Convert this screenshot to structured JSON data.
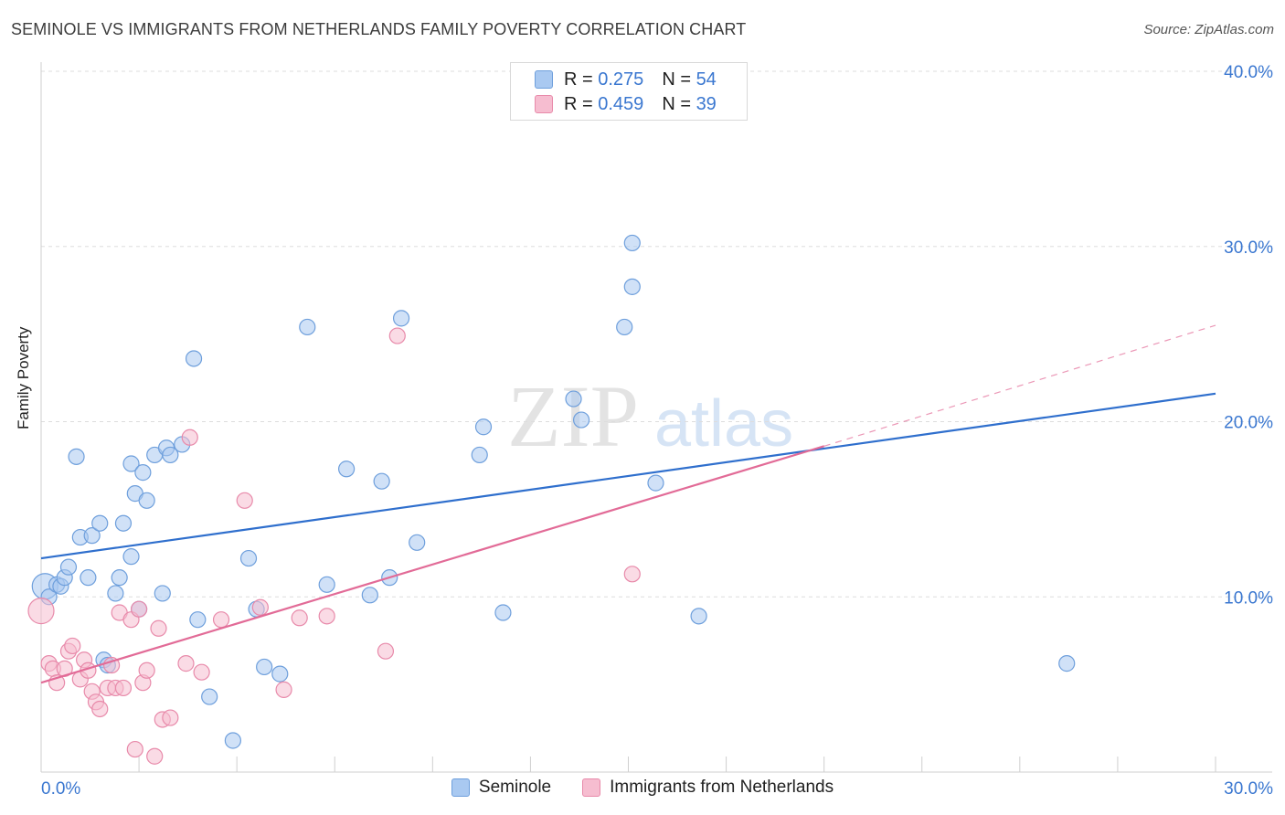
{
  "title": "SEMINOLE VS IMMIGRANTS FROM NETHERLANDS FAMILY POVERTY CORRELATION CHART",
  "source": "Source: ZipAtlas.com",
  "watermark": {
    "zip": "ZIP",
    "atlas": "atlas"
  },
  "legend": {
    "r_label": "R =",
    "n_label": "N =",
    "rows": [
      {
        "r": "0.275",
        "n": "54"
      },
      {
        "r": "0.459",
        "n": "39"
      }
    ]
  },
  "colors": {
    "blue_fill": "#a9c9f1",
    "blue_stroke": "#6e9fdc",
    "blue_line": "#2f6fcd",
    "pink_fill": "#f6bdd0",
    "pink_stroke": "#e88aaa",
    "pink_line": "#e26b97",
    "axis_text": "#3a77d0",
    "grid": "#dddddd"
  },
  "chart_data": {
    "type": "scatter",
    "title": "SEMINOLE VS IMMIGRANTS FROM NETHERLANDS FAMILY POVERTY CORRELATION CHART",
    "xlabel": "",
    "ylabel": "Family Poverty",
    "xlim": [
      0,
      30
    ],
    "ylim": [
      0,
      40
    ],
    "x_tick_labels": [
      "0.0%",
      "30.0%"
    ],
    "y_tick_values": [
      10,
      20,
      30,
      40
    ],
    "y_tick_labels": [
      "10.0%",
      "20.0%",
      "30.0%",
      "40.0%"
    ],
    "grid": "horizontal-dashed",
    "series": [
      {
        "name": "Seminole",
        "r": 0.275,
        "n": 54,
        "points": [
          [
            0.1,
            10.6
          ],
          [
            0.2,
            10.0
          ],
          [
            0.4,
            10.7
          ],
          [
            0.5,
            10.6
          ],
          [
            0.6,
            11.1
          ],
          [
            0.7,
            11.7
          ],
          [
            0.9,
            18.0
          ],
          [
            1.0,
            13.4
          ],
          [
            1.2,
            11.1
          ],
          [
            1.3,
            13.5
          ],
          [
            1.5,
            14.2
          ],
          [
            1.6,
            6.4
          ],
          [
            1.7,
            6.1
          ],
          [
            1.9,
            10.2
          ],
          [
            2.0,
            11.1
          ],
          [
            2.1,
            14.2
          ],
          [
            2.3,
            17.6
          ],
          [
            2.3,
            12.3
          ],
          [
            2.4,
            15.9
          ],
          [
            2.5,
            9.3
          ],
          [
            2.6,
            17.1
          ],
          [
            2.7,
            15.5
          ],
          [
            2.9,
            18.1
          ],
          [
            3.1,
            10.2
          ],
          [
            3.2,
            18.5
          ],
          [
            3.3,
            18.1
          ],
          [
            3.6,
            18.7
          ],
          [
            3.9,
            23.6
          ],
          [
            4.0,
            8.7
          ],
          [
            4.3,
            4.3
          ],
          [
            4.9,
            1.8
          ],
          [
            5.3,
            12.2
          ],
          [
            5.5,
            9.3
          ],
          [
            5.7,
            6.0
          ],
          [
            6.1,
            5.6
          ],
          [
            6.8,
            25.4
          ],
          [
            7.3,
            10.7
          ],
          [
            7.8,
            17.3
          ],
          [
            8.4,
            10.1
          ],
          [
            8.7,
            16.6
          ],
          [
            8.9,
            11.1
          ],
          [
            9.2,
            25.9
          ],
          [
            9.6,
            13.1
          ],
          [
            11.2,
            18.1
          ],
          [
            11.3,
            19.7
          ],
          [
            11.8,
            9.1
          ],
          [
            13.6,
            21.3
          ],
          [
            13.8,
            20.1
          ],
          [
            14.9,
            25.4
          ],
          [
            15.1,
            27.7
          ],
          [
            15.1,
            30.2
          ],
          [
            15.7,
            16.5
          ],
          [
            16.8,
            8.9
          ],
          [
            26.2,
            6.2
          ]
        ],
        "trend": {
          "x0": 0,
          "y0": 12.2,
          "x1": 30,
          "y1": 21.6
        }
      },
      {
        "name": "Immigrants from Netherlands",
        "r": 0.459,
        "n": 39,
        "points": [
          [
            0.0,
            9.2
          ],
          [
            0.2,
            6.2
          ],
          [
            0.3,
            5.9
          ],
          [
            0.4,
            5.1
          ],
          [
            0.6,
            5.9
          ],
          [
            0.7,
            6.9
          ],
          [
            0.8,
            7.2
          ],
          [
            1.0,
            5.3
          ],
          [
            1.1,
            6.4
          ],
          [
            1.2,
            5.8
          ],
          [
            1.3,
            4.6
          ],
          [
            1.4,
            4.0
          ],
          [
            1.5,
            3.6
          ],
          [
            1.7,
            4.8
          ],
          [
            1.8,
            6.1
          ],
          [
            1.9,
            4.8
          ],
          [
            2.0,
            9.1
          ],
          [
            2.1,
            4.8
          ],
          [
            2.3,
            8.7
          ],
          [
            2.4,
            1.3
          ],
          [
            2.5,
            9.3
          ],
          [
            2.6,
            5.1
          ],
          [
            2.7,
            5.8
          ],
          [
            2.9,
            0.9
          ],
          [
            3.0,
            8.2
          ],
          [
            3.1,
            3.0
          ],
          [
            3.3,
            3.1
          ],
          [
            3.7,
            6.2
          ],
          [
            3.8,
            19.1
          ],
          [
            4.1,
            5.7
          ],
          [
            4.6,
            8.7
          ],
          [
            5.2,
            15.5
          ],
          [
            5.6,
            9.4
          ],
          [
            6.2,
            4.7
          ],
          [
            6.6,
            8.8
          ],
          [
            7.3,
            8.9
          ],
          [
            8.8,
            6.9
          ],
          [
            9.1,
            24.9
          ],
          [
            15.1,
            11.3
          ]
        ],
        "trend": {
          "x0": 0,
          "y0": 5.1,
          "x1": 20.0,
          "y1": 18.6
        },
        "trend_extension": {
          "x0": 20.0,
          "y0": 18.6,
          "x1": 30,
          "y1": 25.5
        }
      }
    ]
  },
  "bottom_legend": [
    "Seminole",
    "Immigrants from Netherlands"
  ]
}
